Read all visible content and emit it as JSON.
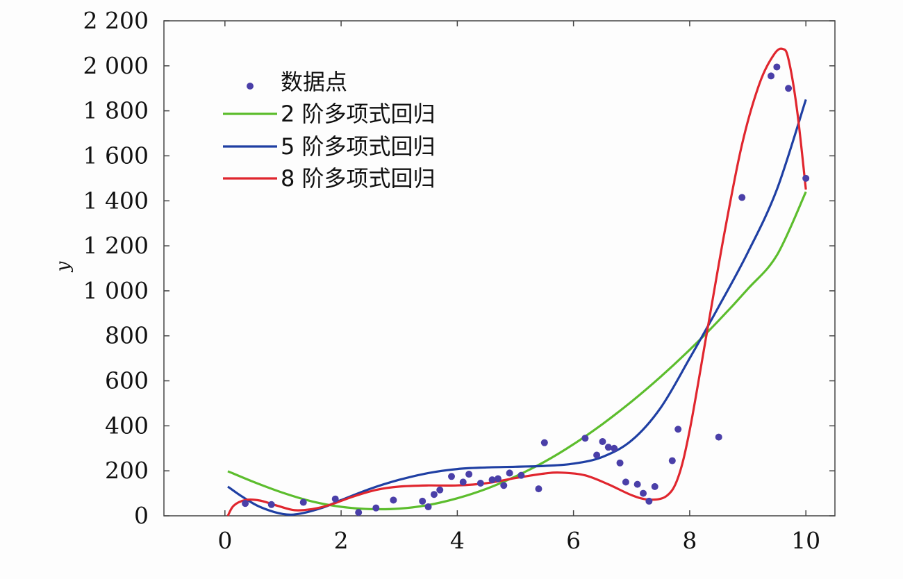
{
  "chart_data": {
    "type": "scatter",
    "title": "",
    "xlabel": "",
    "ylabel": "y",
    "xlim": [
      -1.05,
      10.5
    ],
    "ylim": [
      0,
      2200
    ],
    "x_ticks": [
      0,
      2,
      4,
      6,
      8,
      10
    ],
    "y_ticks": [
      0,
      200,
      400,
      600,
      800,
      1000,
      1200,
      1400,
      1600,
      1800,
      2000,
      2200
    ],
    "x_tick_labels": [
      "0",
      "2",
      "4",
      "6",
      "8",
      "10"
    ],
    "y_tick_labels": [
      "0",
      "200",
      "400",
      "600",
      "800",
      "1 000",
      "1 200",
      "1 400",
      "1 600",
      "1 800",
      "2 000",
      "2 200"
    ],
    "grid": false,
    "legend_position": "top-left",
    "series": [
      {
        "name": "数据点",
        "kind": "scatter",
        "color": "#4a3fa8",
        "points": [
          [
            0.35,
            55
          ],
          [
            0.8,
            50
          ],
          [
            1.35,
            60
          ],
          [
            1.9,
            75
          ],
          [
            2.3,
            15
          ],
          [
            2.6,
            35
          ],
          [
            2.9,
            70
          ],
          [
            3.4,
            65
          ],
          [
            3.5,
            40
          ],
          [
            3.6,
            95
          ],
          [
            3.7,
            115
          ],
          [
            3.9,
            175
          ],
          [
            4.1,
            150
          ],
          [
            4.2,
            185
          ],
          [
            4.4,
            145
          ],
          [
            4.6,
            160
          ],
          [
            4.7,
            165
          ],
          [
            4.8,
            135
          ],
          [
            4.9,
            190
          ],
          [
            5.1,
            180
          ],
          [
            5.4,
            120
          ],
          [
            5.5,
            325
          ],
          [
            6.2,
            345
          ],
          [
            6.4,
            270
          ],
          [
            6.5,
            330
          ],
          [
            6.6,
            305
          ],
          [
            6.7,
            300
          ],
          [
            6.8,
            235
          ],
          [
            6.9,
            150
          ],
          [
            7.1,
            140
          ],
          [
            7.2,
            100
          ],
          [
            7.3,
            65
          ],
          [
            7.4,
            130
          ],
          [
            7.7,
            245
          ],
          [
            7.8,
            385
          ],
          [
            8.5,
            350
          ],
          [
            8.9,
            1415
          ],
          [
            9.4,
            1955
          ],
          [
            9.5,
            1995
          ],
          [
            9.7,
            1900
          ],
          [
            10.0,
            1500
          ]
        ]
      },
      {
        "name": "2 阶多项式回归",
        "kind": "line",
        "color": "#5cbd2d",
        "points": [
          [
            0.05,
            198
          ],
          [
            0.5,
            150
          ],
          [
            1,
            102
          ],
          [
            1.5,
            64
          ],
          [
            2,
            40
          ],
          [
            2.5,
            30
          ],
          [
            3,
            32
          ],
          [
            3.5,
            48
          ],
          [
            4,
            78
          ],
          [
            4.5,
            120
          ],
          [
            5,
            175
          ],
          [
            5.5,
            240
          ],
          [
            6,
            318
          ],
          [
            6.5,
            408
          ],
          [
            7,
            508
          ],
          [
            7.5,
            618
          ],
          [
            8,
            738
          ],
          [
            8.5,
            868
          ],
          [
            9,
            1008
          ],
          [
            9.5,
            1158
          ],
          [
            10,
            1440
          ]
        ]
      },
      {
        "name": "5 阶多项式回归",
        "kind": "line",
        "color": "#1f3fa3",
        "points": [
          [
            0.05,
            130
          ],
          [
            0.3,
            85
          ],
          [
            0.6,
            40
          ],
          [
            1,
            8
          ],
          [
            1.3,
            10
          ],
          [
            1.7,
            38
          ],
          [
            2,
            70
          ],
          [
            2.5,
            120
          ],
          [
            3,
            160
          ],
          [
            3.5,
            190
          ],
          [
            4,
            208
          ],
          [
            4.5,
            215
          ],
          [
            5,
            218
          ],
          [
            5.5,
            222
          ],
          [
            6,
            232
          ],
          [
            6.5,
            262
          ],
          [
            7,
            335
          ],
          [
            7.5,
            480
          ],
          [
            8,
            700
          ],
          [
            8.5,
            930
          ],
          [
            9,
            1170
          ],
          [
            9.5,
            1450
          ],
          [
            10,
            1850
          ]
        ]
      },
      {
        "name": "8 阶多项式回归",
        "kind": "line",
        "color": "#e0262e",
        "points": [
          [
            0.05,
            0
          ],
          [
            0.15,
            45
          ],
          [
            0.35,
            70
          ],
          [
            0.6,
            68
          ],
          [
            0.9,
            45
          ],
          [
            1.2,
            25
          ],
          [
            1.5,
            30
          ],
          [
            1.8,
            48
          ],
          [
            2.2,
            85
          ],
          [
            2.6,
            115
          ],
          [
            3,
            130
          ],
          [
            3.5,
            135
          ],
          [
            4,
            135
          ],
          [
            4.5,
            145
          ],
          [
            5,
            168
          ],
          [
            5.5,
            188
          ],
          [
            5.8,
            192
          ],
          [
            6.2,
            180
          ],
          [
            6.6,
            140
          ],
          [
            7,
            92
          ],
          [
            7.3,
            72
          ],
          [
            7.6,
            88
          ],
          [
            7.8,
            170
          ],
          [
            8,
            380
          ],
          [
            8.3,
            820
          ],
          [
            8.6,
            1260
          ],
          [
            8.9,
            1650
          ],
          [
            9.2,
            1920
          ],
          [
            9.45,
            2050
          ],
          [
            9.6,
            2075
          ],
          [
            9.7,
            2030
          ],
          [
            9.85,
            1800
          ],
          [
            10,
            1450
          ]
        ]
      }
    ]
  }
}
